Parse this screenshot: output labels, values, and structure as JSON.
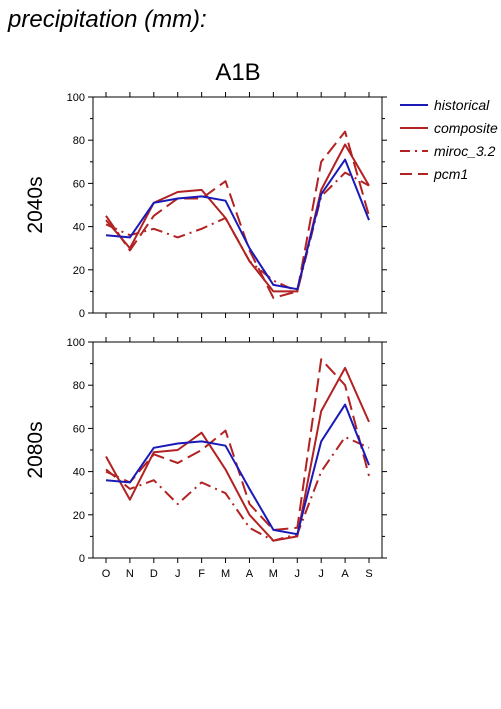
{
  "page": {
    "title": "precipitation (mm):"
  },
  "chart_data": {
    "type": "line",
    "title": "A1B",
    "categories": [
      "O",
      "N",
      "D",
      "J",
      "F",
      "M",
      "A",
      "M",
      "J",
      "J",
      "A",
      "S"
    ],
    "ylim": [
      0,
      100
    ],
    "yticks": [
      0,
      20,
      40,
      60,
      80,
      100
    ],
    "legend_position": "top-right",
    "legend": [
      {
        "name": "historical",
        "color": "#1a1ab8",
        "dash": "solid"
      },
      {
        "name": "composite",
        "color": "#b22222",
        "dash": "solid"
      },
      {
        "name": "miroc_3.2",
        "color": "#b22222",
        "dash": "dashdot"
      },
      {
        "name": "pcm1",
        "color": "#b22222",
        "dash": "dashed"
      }
    ],
    "panels": [
      {
        "row_label": "2040s",
        "series": [
          {
            "name": "historical",
            "values": [
              36,
              35,
              51,
              53,
              54,
              52,
              30,
              13,
              11,
              55,
              71,
              43
            ]
          },
          {
            "name": "composite",
            "values": [
              43,
              30,
              51,
              56,
              57,
              44,
              24,
              10,
              10,
              57,
              78,
              59
            ]
          },
          {
            "name": "miroc_3.2",
            "values": [
              41,
              36,
              39,
              35,
              39,
              44,
              24,
              15,
              10,
              54,
              65,
              59
            ]
          },
          {
            "name": "pcm1",
            "values": [
              45,
              29,
              45,
              53,
              53,
              61,
              29,
              7,
              10,
              70,
              84,
              45
            ]
          }
        ]
      },
      {
        "row_label": "2080s",
        "series": [
          {
            "name": "historical",
            "values": [
              36,
              35,
              51,
              53,
              54,
              52,
              32,
              13,
              11,
              54,
              71,
              43
            ]
          },
          {
            "name": "composite",
            "values": [
              47,
              27,
              49,
              50,
              58,
              41,
              20,
              8,
              10,
              68,
              88,
              63
            ]
          },
          {
            "name": "miroc_3.2",
            "values": [
              41,
              32,
              36,
              25,
              35,
              30,
              14,
              8,
              11,
              40,
              56,
              51
            ]
          },
          {
            "name": "pcm1",
            "values": [
              40,
              35,
              48,
              44,
              50,
              59,
              25,
              13,
              14,
              92,
              80,
              38
            ]
          }
        ]
      }
    ]
  }
}
